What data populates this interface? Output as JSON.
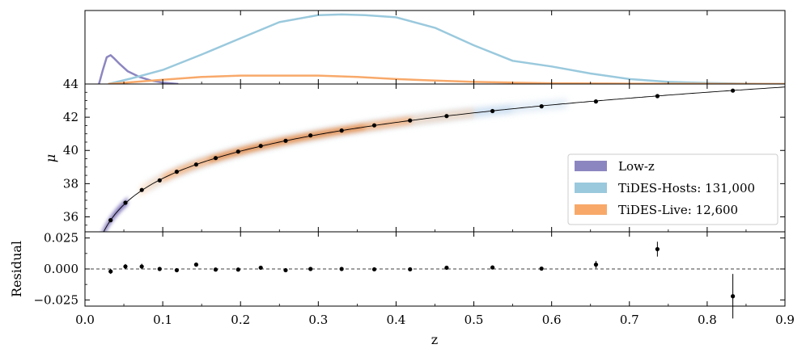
{
  "chart_data": {
    "type": "scatter",
    "xlabel": "z",
    "xlim": [
      0.0,
      0.9
    ],
    "x_ticks": [
      0.0,
      0.1,
      0.2,
      0.3,
      0.4,
      0.5,
      0.6,
      0.7,
      0.8,
      0.9
    ],
    "x_tick_labels": [
      "0.0",
      "0.1",
      "0.2",
      "0.3",
      "0.4",
      "0.5",
      "0.6",
      "0.7",
      "0.8",
      "0.9"
    ],
    "panels": {
      "distribution": {
        "type": "line",
        "ylim": [
          0,
          1
        ],
        "series": [
          {
            "ref": "lowz",
            "color": "#8c86c0",
            "x": [
              0.018,
              0.023,
              0.028,
              0.033,
              0.038,
              0.045,
              0.055,
              0.07,
              0.085,
              0.1,
              0.12
            ],
            "y": [
              0.0,
              0.2,
              0.38,
              0.41,
              0.36,
              0.28,
              0.18,
              0.1,
              0.05,
              0.02,
              0.0
            ]
          },
          {
            "ref": "hosts",
            "color": "#9ac9dd",
            "x": [
              0.03,
              0.06,
              0.1,
              0.15,
              0.2,
              0.25,
              0.3,
              0.33,
              0.36,
              0.4,
              0.45,
              0.5,
              0.55,
              0.6,
              0.65,
              0.7,
              0.75,
              0.8,
              0.85,
              0.9
            ],
            "y": [
              0.0,
              0.08,
              0.2,
              0.42,
              0.65,
              0.88,
              0.98,
              0.99,
              0.98,
              0.95,
              0.8,
              0.55,
              0.33,
              0.25,
              0.15,
              0.07,
              0.03,
              0.015,
              0.005,
              0.0
            ]
          },
          {
            "ref": "live",
            "color": "#f8a96a",
            "x": [
              0.03,
              0.1,
              0.15,
              0.2,
              0.25,
              0.3,
              0.35,
              0.4,
              0.45,
              0.5,
              0.55,
              0.6,
              0.7,
              0.8,
              0.9
            ],
            "y": [
              0.0,
              0.06,
              0.1,
              0.12,
              0.12,
              0.12,
              0.1,
              0.07,
              0.05,
              0.03,
              0.02,
              0.01,
              0.005,
              0.002,
              0.0
            ]
          }
        ]
      },
      "hubble": {
        "ylabel": "μ",
        "ylim": [
          35.1,
          44.0
        ],
        "y_ticks": [
          36,
          38,
          40,
          42,
          44
        ],
        "y_tick_labels": [
          "36",
          "38",
          "40",
          "42",
          "44"
        ],
        "model_curve": "distance modulus vs z",
        "binned_points": {
          "z": [
            0.033,
            0.052,
            0.073,
            0.096,
            0.118,
            0.143,
            0.168,
            0.197,
            0.226,
            0.258,
            0.29,
            0.33,
            0.372,
            0.418,
            0.465,
            0.524,
            0.587,
            0.657,
            0.736,
            0.833
          ],
          "mu": [
            35.8,
            36.85,
            37.62,
            38.2,
            38.72,
            39.15,
            39.54,
            39.93,
            40.27,
            40.58,
            40.9,
            41.2,
            41.51,
            41.8,
            42.07,
            42.37,
            42.66,
            42.95,
            43.27,
            43.6
          ]
        },
        "legend": {
          "placement": "lower-right",
          "entries": [
            {
              "label": "Low-z",
              "color": "#8c86c0"
            },
            {
              "label": "TiDES-Hosts: 131,000",
              "color": "#9ac9dd"
            },
            {
              "label": "TiDES-Live: 12,600",
              "color": "#f8a96a"
            }
          ]
        }
      },
      "residual": {
        "ylabel": "Residual",
        "ylim": [
          -0.03,
          0.03
        ],
        "y_ticks": [
          0.025,
          0.0,
          -0.025
        ],
        "y_tick_labels": [
          "0.025",
          "0.000",
          "−0.025"
        ],
        "zero_line": "dashed",
        "points": {
          "z": [
            0.033,
            0.052,
            0.073,
            0.096,
            0.118,
            0.143,
            0.168,
            0.197,
            0.226,
            0.258,
            0.29,
            0.33,
            0.372,
            0.418,
            0.465,
            0.524,
            0.587,
            0.657,
            0.736,
            0.833
          ],
          "res": [
            -0.002,
            0.002,
            0.002,
            0.0,
            -0.001,
            0.0035,
            -0.0005,
            -0.0005,
            0.001,
            -0.001,
            0.0,
            0.0,
            -0.0003,
            -0.0003,
            0.001,
            0.0012,
            0.0003,
            0.0035,
            0.016,
            -0.022
          ],
          "err": [
            0.002,
            0.002,
            0.0022,
            0.0015,
            0.0012,
            0.001,
            0.001,
            0.001,
            0.001,
            0.001,
            0.001,
            0.001,
            0.001,
            0.001,
            0.001,
            0.001,
            0.0015,
            0.003,
            0.006,
            0.018
          ]
        }
      }
    }
  }
}
